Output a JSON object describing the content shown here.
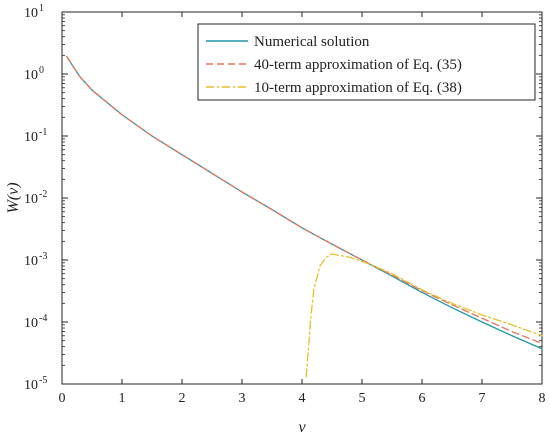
{
  "chart_data": {
    "type": "line",
    "title": "",
    "xlabel": "v",
    "ylabel": "W(v)",
    "xlim": [
      0,
      8
    ],
    "ylim": [
      1e-05,
      10
    ],
    "yscale": "log",
    "grid": false,
    "legend_position": "top-right",
    "x_ticks": [
      "0",
      "1",
      "2",
      "3",
      "4",
      "5",
      "6",
      "7",
      "8"
    ],
    "y_ticks": [
      {
        "value": 1e-05,
        "base": "10",
        "exp": "-5"
      },
      {
        "value": 0.0001,
        "base": "10",
        "exp": "-4"
      },
      {
        "value": 0.001,
        "base": "10",
        "exp": "-3"
      },
      {
        "value": 0.01,
        "base": "10",
        "exp": "-2"
      },
      {
        "value": 0.1,
        "base": "10",
        "exp": "-1"
      },
      {
        "value": 1,
        "base": "10",
        "exp": "0"
      },
      {
        "value": 10,
        "base": "10",
        "exp": "1"
      }
    ],
    "series": [
      {
        "name": "Numerical solution",
        "color": "#1f9aa8",
        "dash": "solid",
        "x": [
          0.08,
          0.3,
          0.5,
          1.0,
          1.5,
          2.0,
          2.5,
          3.0,
          3.5,
          4.0,
          4.5,
          5.0,
          5.5,
          6.0,
          6.5,
          7.0,
          7.5,
          8.0
        ],
        "y": [
          1.9,
          0.9,
          0.55,
          0.22,
          0.1,
          0.05,
          0.025,
          0.0125,
          0.0065,
          0.0033,
          0.0018,
          0.001,
          0.00055,
          0.0003,
          0.00017,
          0.0001,
          6e-05,
          3.7e-05
        ]
      },
      {
        "name": "40-term approximation of Eq. (35)",
        "color": "#e8735a",
        "dash": "dashed",
        "x": [
          0.08,
          0.3,
          0.5,
          1.0,
          1.5,
          2.0,
          2.5,
          3.0,
          3.5,
          4.0,
          4.5,
          5.0,
          5.5,
          6.0,
          6.5,
          7.0,
          7.5,
          8.0
        ],
        "y": [
          1.9,
          0.9,
          0.55,
          0.22,
          0.1,
          0.05,
          0.025,
          0.0125,
          0.0065,
          0.0033,
          0.0018,
          0.001,
          0.00057,
          0.00032,
          0.00019,
          0.000115,
          7e-05,
          4.5e-05
        ]
      },
      {
        "name": "10-term approximation of Eq. (38)",
        "color": "#e5c12a",
        "dash": "dashdot",
        "x": [
          4.07,
          4.1,
          4.15,
          4.2,
          4.3,
          4.4,
          4.5,
          4.6,
          4.8,
          5.0,
          5.2,
          5.5,
          6.0,
          6.5,
          7.0,
          7.5,
          8.0
        ],
        "y": [
          1.3e-05,
          3e-05,
          0.00013,
          0.00035,
          0.0008,
          0.0011,
          0.00125,
          0.0012,
          0.0011,
          0.00095,
          0.0008,
          0.0006,
          0.00033,
          0.0002,
          0.00013,
          9e-05,
          6e-05
        ]
      }
    ]
  }
}
